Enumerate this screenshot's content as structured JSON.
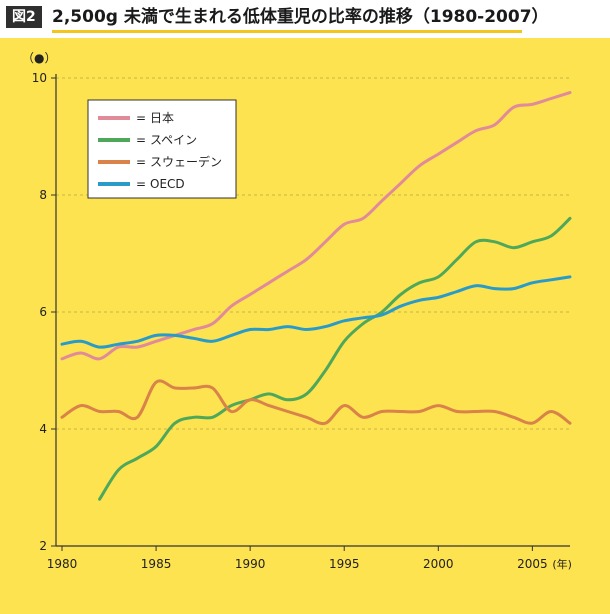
{
  "header": {
    "figure_label": "図2",
    "title": "2,500g 未満で生まれる低体重児の比率の推移（1980-2007）"
  },
  "colors": {
    "background": "#fde34f",
    "japan": "#e08a9a",
    "spain": "#4fa85a",
    "sweden": "#d9824a",
    "oecd": "#2a9bc8"
  },
  "chart_data": {
    "type": "line",
    "title": "2,500g 未満で生まれる低体重児の比率の推移（1980-2007）",
    "ylabel": "（●）",
    "xlabel_unit": "(年)",
    "xlim": [
      1980,
      2007
    ],
    "ylim": [
      2,
      10
    ],
    "xticks": [
      "1980",
      "1985",
      "1990",
      "1995",
      "2000",
      "2005"
    ],
    "yticks": [
      "2",
      "4",
      "6",
      "8",
      "10"
    ],
    "grid": "horizontal dashed",
    "legend_position": "top-left",
    "legend_prefix": "=",
    "series": [
      {
        "name": "日本",
        "color": "#e08a9a",
        "x": [
          1980,
          1981,
          1982,
          1983,
          1984,
          1985,
          1986,
          1987,
          1988,
          1989,
          1990,
          1991,
          1992,
          1993,
          1994,
          1995,
          1996,
          1997,
          1998,
          1999,
          2000,
          2001,
          2002,
          2003,
          2004,
          2005,
          2006,
          2007
        ],
        "y": [
          5.2,
          5.3,
          5.2,
          5.4,
          5.4,
          5.5,
          5.6,
          5.7,
          5.8,
          6.1,
          6.3,
          6.5,
          6.7,
          6.9,
          7.2,
          7.5,
          7.6,
          7.9,
          8.2,
          8.5,
          8.7,
          8.9,
          9.1,
          9.2,
          9.5,
          9.55,
          9.65,
          9.75
        ]
      },
      {
        "name": "スペイン",
        "color": "#4fa85a",
        "x": [
          1982,
          1983,
          1984,
          1985,
          1986,
          1987,
          1988,
          1989,
          1990,
          1991,
          1992,
          1993,
          1994,
          1995,
          1996,
          1997,
          1998,
          1999,
          2000,
          2001,
          2002,
          2003,
          2004,
          2005,
          2006,
          2007
        ],
        "y": [
          2.8,
          3.3,
          3.5,
          3.7,
          4.1,
          4.2,
          4.2,
          4.4,
          4.5,
          4.6,
          4.5,
          4.6,
          5.0,
          5.5,
          5.8,
          6.0,
          6.3,
          6.5,
          6.6,
          6.9,
          7.2,
          7.2,
          7.1,
          7.2,
          7.3,
          7.6
        ]
      },
      {
        "name": "スウェーデン",
        "color": "#d9824a",
        "x": [
          1980,
          1981,
          1982,
          1983,
          1984,
          1985,
          1986,
          1987,
          1988,
          1989,
          1990,
          1991,
          1992,
          1993,
          1994,
          1995,
          1996,
          1997,
          1998,
          1999,
          2000,
          2001,
          2002,
          2003,
          2004,
          2005,
          2006,
          2007
        ],
        "y": [
          4.2,
          4.4,
          4.3,
          4.3,
          4.2,
          4.8,
          4.7,
          4.7,
          4.7,
          4.3,
          4.5,
          4.4,
          4.3,
          4.2,
          4.1,
          4.4,
          4.2,
          4.3,
          4.3,
          4.3,
          4.4,
          4.3,
          4.3,
          4.3,
          4.2,
          4.1,
          4.3,
          4.1
        ]
      },
      {
        "name": "OECD",
        "color": "#2a9bc8",
        "x": [
          1980,
          1981,
          1982,
          1983,
          1984,
          1985,
          1986,
          1987,
          1988,
          1989,
          1990,
          1991,
          1992,
          1993,
          1994,
          1995,
          1996,
          1997,
          1998,
          1999,
          2000,
          2001,
          2002,
          2003,
          2004,
          2005,
          2006,
          2007
        ],
        "y": [
          5.45,
          5.5,
          5.4,
          5.45,
          5.5,
          5.6,
          5.6,
          5.55,
          5.5,
          5.6,
          5.7,
          5.7,
          5.75,
          5.7,
          5.75,
          5.85,
          5.9,
          5.95,
          6.1,
          6.2,
          6.25,
          6.35,
          6.45,
          6.4,
          6.4,
          6.5,
          6.55,
          6.6
        ]
      }
    ]
  }
}
